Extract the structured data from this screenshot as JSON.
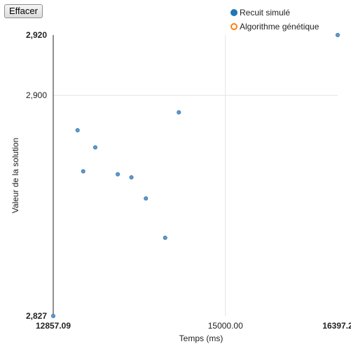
{
  "toolbar": {
    "clear_label": "Effacer"
  },
  "legend": {
    "items": [
      {
        "label": "Recuit simulé",
        "color": "#1f77b4",
        "filled": true
      },
      {
        "label": "Algorithme génétique",
        "color": "#ff7f0e",
        "filled": false
      }
    ]
  },
  "chart_data": {
    "type": "scatter",
    "xlabel": "Temps (ms)",
    "ylabel": "Valeur de la solution",
    "xlim": [
      12857.09,
      16397.2
    ],
    "ylim": [
      2.827,
      2.92
    ],
    "x_ticks": [
      {
        "value": 12857.09,
        "label": "12857.09",
        "bold": true
      },
      {
        "value": 15000.0,
        "label": "15000.00",
        "bold": false
      },
      {
        "value": 16397.2,
        "label": "16397.2",
        "bold": true
      }
    ],
    "y_ticks": [
      {
        "value": 2.827,
        "label": "2,827",
        "bold": true
      },
      {
        "value": 2.9,
        "label": "2,900",
        "bold": false
      },
      {
        "value": 2.92,
        "label": "2,920",
        "bold": true
      }
    ],
    "grid": true,
    "legend_position": "top-right",
    "series": [
      {
        "name": "Recuit simulé",
        "color": "#5b9bd5",
        "points": [
          {
            "x": 12857.09,
            "y": 2.827
          },
          {
            "x": 13160,
            "y": 2.8885
          },
          {
            "x": 13230,
            "y": 2.8749
          },
          {
            "x": 13380,
            "y": 2.8828
          },
          {
            "x": 13660,
            "y": 2.8739
          },
          {
            "x": 13830,
            "y": 2.8729
          },
          {
            "x": 14010,
            "y": 2.8659
          },
          {
            "x": 14250,
            "y": 2.8529
          },
          {
            "x": 14420,
            "y": 2.8944
          },
          {
            "x": 16397.2,
            "y": 2.92
          }
        ]
      },
      {
        "name": "Algorithme génétique",
        "color": "#ff7f0e",
        "points": []
      }
    ]
  }
}
